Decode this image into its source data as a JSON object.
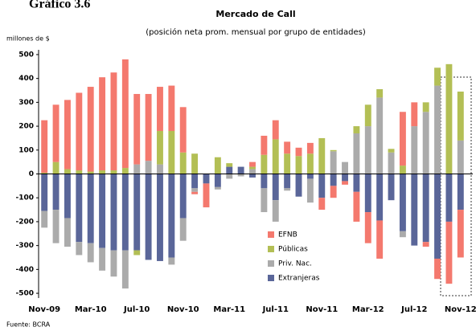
{
  "chart_data": {
    "type": "stacked_bar",
    "header": "Gráfico 3.6",
    "title": "Mercado de Call",
    "subtitle": "(posición neta prom. mensual por grupo de entidades)",
    "y_label": "millones de $",
    "source": "Fuente: BCRA",
    "categories": [
      "Nov-09",
      null,
      null,
      null,
      "Mar-10",
      null,
      null,
      null,
      "Jul-10",
      null,
      null,
      null,
      "Nov-10",
      null,
      null,
      null,
      "Mar-11",
      null,
      null,
      null,
      "Jul-11",
      null,
      null,
      null,
      "Nov-11",
      null,
      null,
      null,
      "Mar-12",
      null,
      null,
      null,
      "Jul-12",
      null,
      null,
      null,
      "Nov-12"
    ],
    "series": [
      {
        "name": "EFNB",
        "color": "#f4796e",
        "values": [
          220,
          240,
          290,
          325,
          355,
          390,
          410,
          455,
          295,
          280,
          185,
          190,
          190,
          -10,
          -100,
          0,
          0,
          0,
          20,
          80,
          80,
          50,
          35,
          45,
          -50,
          -50,
          -15,
          -125,
          -130,
          -160,
          0,
          225,
          100,
          -20,
          -85,
          -260,
          -200
        ]
      },
      {
        "name": "Públicas",
        "color": "#b3bf55",
        "values": [
          5,
          50,
          20,
          15,
          10,
          15,
          15,
          25,
          -20,
          0,
          140,
          180,
          90,
          85,
          0,
          70,
          15,
          0,
          10,
          80,
          145,
          85,
          75,
          85,
          150,
          5,
          0,
          30,
          90,
          35,
          15,
          35,
          0,
          40,
          75,
          460,
          205
        ]
      },
      {
        "name": "Priv. Nac.",
        "color": "#ababab",
        "values": [
          -70,
          -140,
          -120,
          -55,
          -80,
          -95,
          -110,
          -160,
          40,
          55,
          40,
          -30,
          -95,
          -15,
          0,
          -10,
          -20,
          -10,
          20,
          -100,
          -90,
          -10,
          0,
          -100,
          0,
          95,
          50,
          170,
          200,
          320,
          90,
          -25,
          200,
          260,
          370,
          0,
          140
        ]
      },
      {
        "name": "Extranjeras",
        "color": "#5a6699",
        "values": [
          -155,
          -150,
          -185,
          -285,
          -290,
          -310,
          -320,
          -320,
          -320,
          -360,
          -365,
          -350,
          -185,
          -60,
          -40,
          -55,
          30,
          30,
          -15,
          -60,
          -110,
          -60,
          -95,
          -20,
          -100,
          -50,
          -30,
          -75,
          -160,
          -195,
          -110,
          -240,
          -300,
          -285,
          -355,
          -200,
          -150
        ]
      }
    ],
    "ylim": [
      -520,
      520
    ],
    "yticks": [
      -500,
      -400,
      -300,
      -200,
      -100,
      0,
      100,
      200,
      300,
      400,
      500
    ]
  }
}
